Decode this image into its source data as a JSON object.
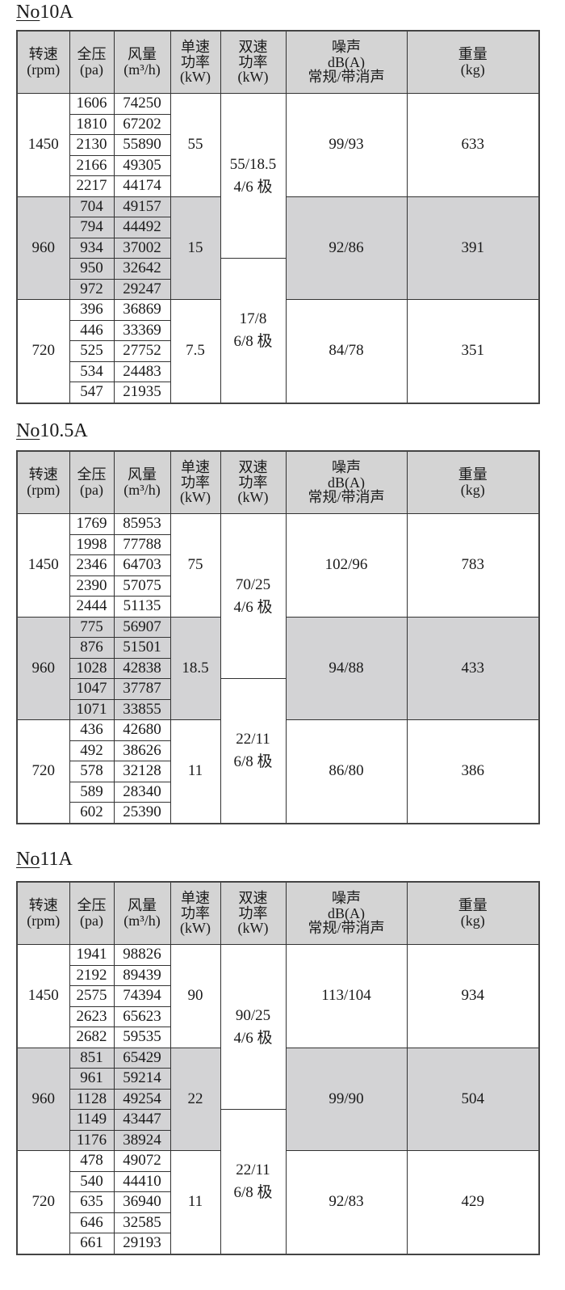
{
  "colors": {
    "header_bg": "#d4d4d4",
    "mid_speed_bg": "#d3d3d5",
    "border": "#333333"
  },
  "headers": [
    "转速\n(rpm)",
    "全压\n(pa)",
    "风量\n(m³/h)",
    "单速\n功率\n(kW)",
    "双速\n功率\n(kW)",
    "噪声\ndB(A)\n常规/带消声",
    "重量\n(kg)"
  ],
  "tables": [
    {
      "title_prefix": "No",
      "title_model": "10A",
      "groups": [
        {
          "speed": "1450",
          "single_power": "55",
          "noise": "99/93",
          "weight": "633",
          "points": [
            [
              "1606",
              "74250"
            ],
            [
              "1810",
              "67202"
            ],
            [
              "2130",
              "55890"
            ],
            [
              "2166",
              "49305"
            ],
            [
              "2217",
              "44174"
            ]
          ]
        },
        {
          "speed": "960",
          "single_power": "15",
          "noise": "92/86",
          "weight": "391",
          "points": [
            [
              "704",
              "49157"
            ],
            [
              "794",
              "44492"
            ],
            [
              "934",
              "37002"
            ],
            [
              "950",
              "32642"
            ],
            [
              "972",
              "29247"
            ]
          ]
        },
        {
          "speed": "720",
          "single_power": "7.5",
          "noise": "84/78",
          "weight": "351",
          "points": [
            [
              "396",
              "36869"
            ],
            [
              "446",
              "33369"
            ],
            [
              "525",
              "27752"
            ],
            [
              "534",
              "24483"
            ],
            [
              "547",
              "21935"
            ]
          ]
        }
      ],
      "dual_power": [
        "55/18.5\n4/6 极",
        "17/8\n6/8 极"
      ]
    },
    {
      "title_prefix": "No",
      "title_model": "10.5A",
      "groups": [
        {
          "speed": "1450",
          "single_power": "75",
          "noise": "102/96",
          "weight": "783",
          "points": [
            [
              "1769",
              "85953"
            ],
            [
              "1998",
              "77788"
            ],
            [
              "2346",
              "64703"
            ],
            [
              "2390",
              "57075"
            ],
            [
              "2444",
              "51135"
            ]
          ]
        },
        {
          "speed": "960",
          "single_power": "18.5",
          "noise": "94/88",
          "weight": "433",
          "points": [
            [
              "775",
              "56907"
            ],
            [
              "876",
              "51501"
            ],
            [
              "1028",
              "42838"
            ],
            [
              "1047",
              "37787"
            ],
            [
              "1071",
              "33855"
            ]
          ]
        },
        {
          "speed": "720",
          "single_power": "11",
          "noise": "86/80",
          "weight": "386",
          "points": [
            [
              "436",
              "42680"
            ],
            [
              "492",
              "38626"
            ],
            [
              "578",
              "32128"
            ],
            [
              "589",
              "28340"
            ],
            [
              "602",
              "25390"
            ]
          ]
        }
      ],
      "dual_power": [
        "70/25\n4/6 极",
        "22/11\n6/8 极"
      ]
    },
    {
      "title_prefix": "No",
      "title_model": "11A",
      "groups": [
        {
          "speed": "1450",
          "single_power": "90",
          "noise": "113/104",
          "weight": "934",
          "points": [
            [
              "1941",
              "98826"
            ],
            [
              "2192",
              "89439"
            ],
            [
              "2575",
              "74394"
            ],
            [
              "2623",
              "65623"
            ],
            [
              "2682",
              "59535"
            ]
          ]
        },
        {
          "speed": "960",
          "single_power": "22",
          "noise": "99/90",
          "weight": "504",
          "points": [
            [
              "851",
              "65429"
            ],
            [
              "961",
              "59214"
            ],
            [
              "1128",
              "49254"
            ],
            [
              "1149",
              "43447"
            ],
            [
              "1176",
              "38924"
            ]
          ]
        },
        {
          "speed": "720",
          "single_power": "11",
          "noise": "92/83",
          "weight": "429",
          "points": [
            [
              "478",
              "49072"
            ],
            [
              "540",
              "44410"
            ],
            [
              "635",
              "36940"
            ],
            [
              "646",
              "32585"
            ],
            [
              "661",
              "29193"
            ]
          ]
        }
      ],
      "dual_power": [
        "90/25\n4/6 极",
        "22/11\n6/8 极"
      ]
    }
  ]
}
